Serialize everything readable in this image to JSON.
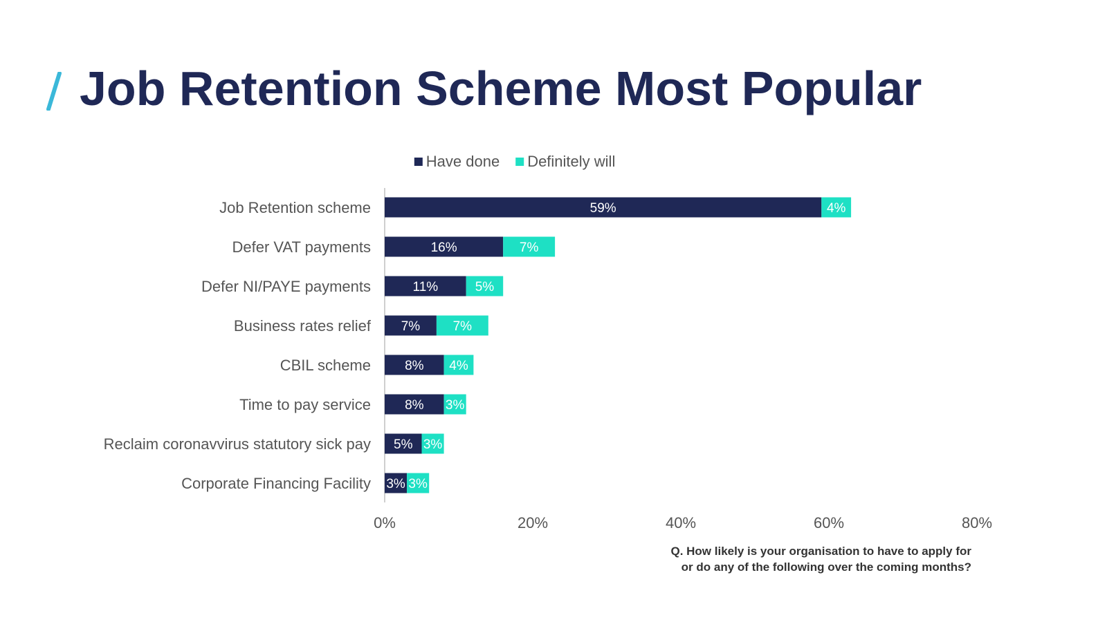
{
  "slide": {
    "title": "Job Retention Scheme Most Popular",
    "question_line1": "Q. How likely is your organisation to have to apply for",
    "question_line2": "or do any of the following over the coming months?",
    "accent_color": "#3bb8d9",
    "title_color": "#1f2856"
  },
  "chart_data": {
    "type": "bar",
    "orientation": "horizontal",
    "stacked": true,
    "categories": [
      "Job Retention scheme",
      "Defer VAT payments",
      "Defer NI/PAYE payments",
      "Business rates relief",
      "CBIL scheme",
      "Time to pay service",
      "Reclaim coronavvirus statutory sick pay",
      "Corporate Financing Facility"
    ],
    "series": [
      {
        "name": "Have done",
        "color": "#1f2856",
        "values": [
          59,
          16,
          11,
          7,
          8,
          8,
          5,
          3
        ]
      },
      {
        "name": "Definitely will",
        "color": "#1ee0c4",
        "values": [
          4,
          7,
          5,
          7,
          4,
          3,
          3,
          3
        ]
      }
    ],
    "value_suffix": "%",
    "xlim": [
      0,
      80
    ],
    "xticks": [
      "0%",
      "20%",
      "40%",
      "60%",
      "80%"
    ],
    "legend_position": "top",
    "grid": false
  }
}
